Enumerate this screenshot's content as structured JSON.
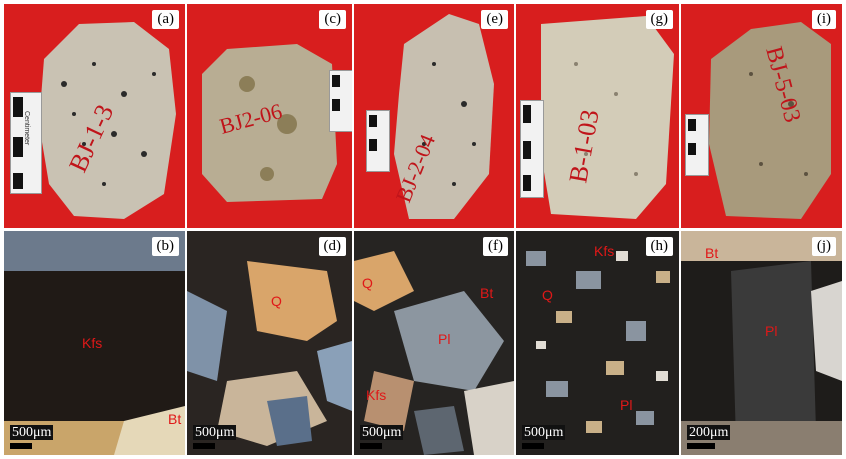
{
  "panels": {
    "a": {
      "tag": "(a)"
    },
    "b": {
      "tag": "(b)",
      "minerals": [
        "Kfs",
        "Bt"
      ],
      "scale": "500μm"
    },
    "c": {
      "tag": "(c)"
    },
    "d": {
      "tag": "(d)",
      "minerals": [
        "Q"
      ],
      "scale": "500μm"
    },
    "e": {
      "tag": "(e)"
    },
    "f": {
      "tag": "(f)",
      "minerals": [
        "Q",
        "Bt",
        "Pl",
        "Kfs"
      ],
      "scale": "500μm"
    },
    "g": {
      "tag": "(g)"
    },
    "h": {
      "tag": "(h)",
      "minerals": [
        "Kfs",
        "Q",
        "Pl"
      ],
      "scale": "500μm"
    },
    "i": {
      "tag": "(i)"
    },
    "j": {
      "tag": "(j)",
      "minerals": [
        "Bt",
        "Pl"
      ],
      "scale": "200μm"
    }
  },
  "sample_labels": [
    "BJ-1-3",
    "BJ2-06",
    "BJ-2-04",
    "B-1-03",
    "BJ-5-03"
  ],
  "scale_card_text": "Centimeter",
  "colors": {
    "background_red": "#d81e1e",
    "mineral_label": "#e01818"
  }
}
